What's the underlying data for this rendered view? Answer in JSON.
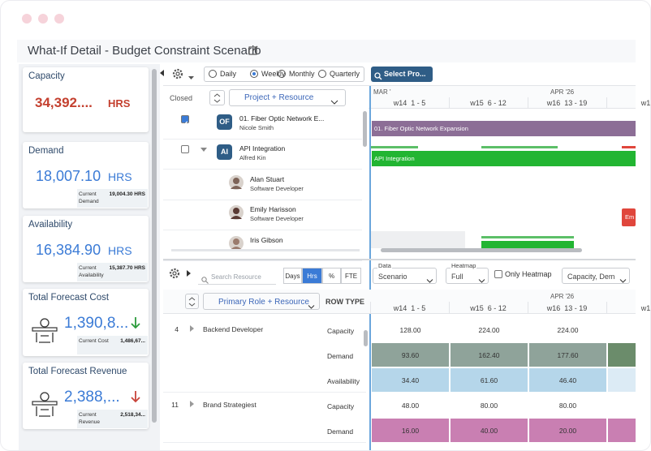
{
  "window": {
    "title": "What-If Detail - Budget Constraint Scenario"
  },
  "kpi_cards": [
    {
      "title": "Capacity",
      "value": "34,392....",
      "unit": "HRS"
    },
    {
      "title": "Demand",
      "value": "18,007.10",
      "unit": "HRS",
      "sub_label": "Current Demand",
      "sub_value": "19,004.30 HRS"
    },
    {
      "title": "Availability",
      "value": "16,384.90",
      "unit": "HRS",
      "sub_label": "Current Availability",
      "sub_value": "15,387.70 HRS"
    },
    {
      "title": "Total Forecast Cost",
      "value": "1,390,8...",
      "trend": "down-good",
      "sub_label": "Current Cost",
      "sub_value": "1,486,67..."
    },
    {
      "title": "Total Forecast Revenue",
      "value": "2,388,...",
      "trend": "down-bad",
      "sub_label": "Current Revenue",
      "sub_value": "2,518,34..."
    }
  ],
  "timeline_toolbar": {
    "views": [
      {
        "label": "Daily",
        "selected": false
      },
      {
        "label": "Weekly",
        "selected": true
      },
      {
        "label": "Monthly",
        "selected": false
      },
      {
        "label": "Quarterly",
        "selected": false
      }
    ],
    "select_button": "Select Pro..."
  },
  "top_grid": {
    "closed_label": "Closed",
    "group_by": "Project + Resource",
    "months": [
      "MAR '",
      "APR '26"
    ],
    "weeks": [
      "w14  1 - 5",
      "w15  6 - 12",
      "w16  13 - 19",
      "w1"
    ],
    "rows": [
      {
        "badge": "OF",
        "name": "01. Fiber Optic Network E...",
        "sub": "Nicole Smith",
        "checked": true
      },
      {
        "badge": "AI",
        "name": "API Integration",
        "sub": "Alfred Kin",
        "checked": false
      },
      {
        "name": "Alan Stuart",
        "sub": "Software Developer"
      },
      {
        "name": "Emily Harisson",
        "sub": "Software Developer"
      },
      {
        "name": "Iris Gibson"
      }
    ],
    "bars": [
      {
        "label": "01. Fiber Optic Network Expansion",
        "color": "#8c6e96"
      },
      {
        "label": "API Integration",
        "color": "#22b532"
      },
      {
        "label": "Em",
        "color": "#e0463c"
      }
    ]
  },
  "bottom_toolbar": {
    "search_placeholder": "Search Resource",
    "units": [
      {
        "label": "Days",
        "active": false
      },
      {
        "label": "Hrs",
        "active": true
      },
      {
        "label": "%",
        "active": false
      },
      {
        "label": "FTE",
        "active": false
      }
    ],
    "data_label": "Data",
    "data_value": "Scenario",
    "heatmap_label": "Heatmap",
    "heatmap_value": "Full",
    "only_heatmap": "Only Heatmap",
    "measures": "Capacity, Dem"
  },
  "bottom_grid": {
    "group_by": "Primary Role + Resource",
    "row_type_header": "ROW TYPE",
    "month": "APR '26",
    "weeks": [
      "w14  1 - 5",
      "w15  6 - 12",
      "w16  13 - 19",
      "w1"
    ],
    "groups": [
      {
        "id": "4",
        "name": "Backend Developer",
        "rows": [
          {
            "type": "Capacity",
            "values": [
              "128.00",
              "224.00",
              "224.00"
            ]
          },
          {
            "type": "Demand",
            "values": [
              "93.60",
              "162.40",
              "177.60"
            ],
            "fill": "#8fa39a",
            "edge_fill": "#6b8c6b"
          },
          {
            "type": "Availability",
            "values": [
              "34.40",
              "61.60",
              "46.40"
            ],
            "fill": "#b5d6ea",
            "edge_fill": "#dcebf5"
          }
        ]
      },
      {
        "id": "11",
        "name": "Brand Strategiest",
        "rows": [
          {
            "type": "Capacity",
            "values": [
              "48.00",
              "80.00",
              "80.00"
            ]
          },
          {
            "type": "Demand",
            "values": [
              "16.00",
              "40.00",
              "20.00"
            ],
            "fill": "#c97fb2",
            "edge_fill": "#c97fb2"
          }
        ]
      }
    ]
  }
}
